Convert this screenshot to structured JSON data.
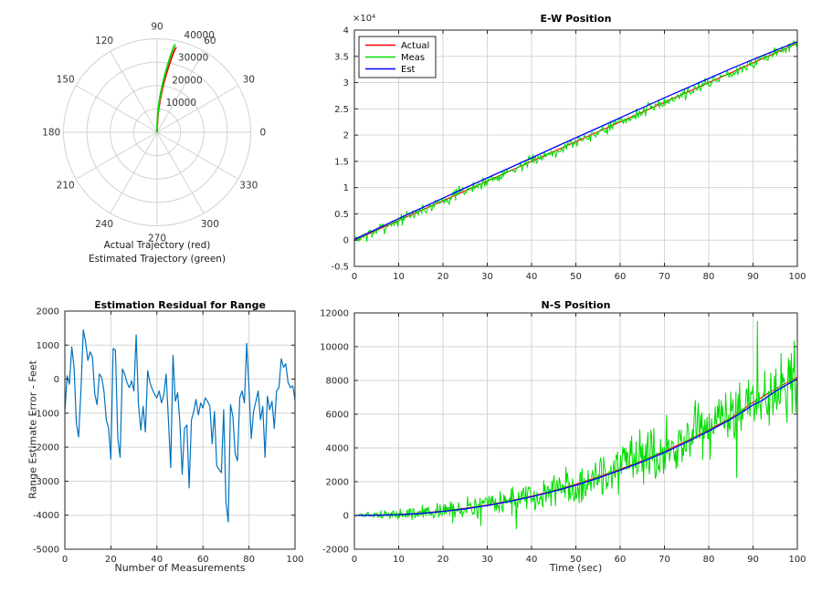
{
  "style": {
    "background": "#ffffff",
    "axis_color": "#262626",
    "grid_color": "#d6d6d6",
    "polar_grid_color": "#d2d2d2",
    "actual_red": "#ff0000",
    "meas_green": "#00dd00",
    "est_blue": "#0000ff",
    "residual_blue": "#0072bd"
  },
  "chart_data": [
    {
      "id": "trajectory-polar",
      "type": "line-polar",
      "captions": [
        "Actual Trajectory (red)",
        "Estimated Trajectory (green)"
      ],
      "rmax": 40000,
      "radius_ticks": [
        10000,
        20000,
        30000,
        40000
      ],
      "radius_tick_labels": [
        "10000",
        "20000",
        "30000",
        "40000"
      ],
      "radius_label_angle_deg": 75,
      "angle_step_deg": 30,
      "angle_labels": [
        "0",
        "30",
        "60",
        "90",
        "120",
        "150",
        "180",
        "210",
        "240",
        "270",
        "300",
        "330"
      ],
      "grid": true,
      "series": [
        {
          "name": "Actual Trajectory",
          "color": "#ff0000",
          "width": 1.8,
          "polar_anchors": [
            [
              90,
              0
            ],
            [
              89.3,
              1300
            ],
            [
              88.4,
              3600
            ],
            [
              87.3,
              6600
            ],
            [
              86.2,
              9600
            ],
            [
              85.1,
              12600
            ],
            [
              84.1,
              15600
            ],
            [
              83.1,
              18600
            ],
            [
              82.1,
              21600
            ],
            [
              81.2,
              24600
            ],
            [
              80.3,
              27600
            ],
            [
              79.5,
              30600
            ],
            [
              78.7,
              33600
            ],
            [
              78.0,
              36000
            ],
            [
              77.4,
              37300
            ]
          ]
        },
        {
          "name": "Estimated Trajectory",
          "color": "#00dd00",
          "width": 1.8,
          "polar_anchors": [
            [
              90,
              0
            ],
            [
              90.3,
              1300
            ],
            [
              89.4,
              3700
            ],
            [
              88.3,
              6800
            ],
            [
              87.2,
              9900
            ],
            [
              86.1,
              13000
            ],
            [
              85.1,
              16100
            ],
            [
              84.1,
              19200
            ],
            [
              83.1,
              22200
            ],
            [
              82.2,
              25300
            ],
            [
              81.3,
              28400
            ],
            [
              80.5,
              31500
            ],
            [
              79.7,
              34600
            ],
            [
              79.0,
              37100
            ],
            [
              78.4,
              38400
            ]
          ]
        }
      ]
    },
    {
      "id": "ew-position",
      "type": "line",
      "title": "E-W Position",
      "xlabel": "",
      "ylabel": "",
      "y_multiplier_label": "×10⁴",
      "xlim": [
        0,
        100
      ],
      "ylim": [
        -5000,
        40000
      ],
      "xticks": [
        0,
        10,
        20,
        30,
        40,
        50,
        60,
        70,
        80,
        90,
        100
      ],
      "xtick_labels": [
        "0",
        "10",
        "20",
        "30",
        "40",
        "50",
        "60",
        "70",
        "80",
        "90",
        "100"
      ],
      "yticks": [
        -5000,
        0,
        5000,
        10000,
        15000,
        20000,
        25000,
        30000,
        35000,
        40000
      ],
      "ytick_labels": [
        "-0.5",
        "0",
        "0.5",
        "1",
        "1.5",
        "2",
        "2.5",
        "3",
        "3.5",
        "4"
      ],
      "grid": true,
      "legend": {
        "position": "northwest",
        "entries": [
          "Actual",
          "Meas",
          "Est"
        ]
      },
      "series": [
        {
          "name": "Actual",
          "color": "#ff0000",
          "width": 1.1,
          "anchors": [
            [
              0,
              0
            ],
            [
              100,
              37500
            ]
          ]
        },
        {
          "name": "Meas",
          "color": "#00dd00",
          "width": 1.0,
          "base": "Actual",
          "noise": {
            "n": 500,
            "seed": 7,
            "sigma0": 520,
            "sigma_slope": 0,
            "spikes": []
          }
        },
        {
          "name": "Est",
          "color": "#0000ff",
          "width": 1.3,
          "anchors": [
            [
              0,
              150
            ],
            [
              5,
              2100
            ],
            [
              10,
              4100
            ],
            [
              15,
              6050
            ],
            [
              20,
              8000
            ],
            [
              25,
              9950
            ],
            [
              30,
              11850
            ],
            [
              35,
              13750
            ],
            [
              40,
              15650
            ],
            [
              45,
              17600
            ],
            [
              50,
              19500
            ],
            [
              55,
              21400
            ],
            [
              60,
              23300
            ],
            [
              65,
              25200
            ],
            [
              70,
              27100
            ],
            [
              75,
              28950
            ],
            [
              80,
              30800
            ],
            [
              85,
              32650
            ],
            [
              90,
              34400
            ],
            [
              95,
              36100
            ],
            [
              100,
              37800
            ]
          ]
        }
      ]
    },
    {
      "id": "range-residual",
      "type": "line",
      "title": "Estimation Residual for Range",
      "xlabel": "Number of Measurements",
      "ylabel": "Range Estimate Error - Feet",
      "xlim": [
        0,
        100
      ],
      "ylim": [
        -5000,
        2000
      ],
      "xticks": [
        0,
        20,
        40,
        60,
        80,
        100
      ],
      "xtick_labels": [
        "0",
        "20",
        "40",
        "60",
        "80",
        "100"
      ],
      "yticks": [
        -5000,
        -4000,
        -3000,
        -2000,
        -1000,
        0,
        1000,
        2000
      ],
      "ytick_labels": [
        "-5000",
        "-4000",
        "-3000",
        "-2000",
        "-1000",
        "0",
        "1000",
        "2000"
      ],
      "grid": true,
      "series": [
        {
          "name": "Range residual",
          "color": "#0072bd",
          "width": 1.2,
          "x_start": 0,
          "x_step": 1,
          "values": [
            -950,
            100,
            -150,
            950,
            350,
            -1300,
            -1700,
            -350,
            1450,
            1100,
            550,
            800,
            650,
            -450,
            -750,
            150,
            50,
            -350,
            -1200,
            -1450,
            -2350,
            900,
            850,
            -1750,
            -2300,
            300,
            150,
            -100,
            -250,
            -50,
            -350,
            1300,
            -750,
            -1500,
            -800,
            -1550,
            250,
            -100,
            -300,
            -450,
            -550,
            -350,
            -700,
            -450,
            150,
            -1200,
            -2600,
            700,
            -650,
            -400,
            -1300,
            -2800,
            -1450,
            -1350,
            -3200,
            -1200,
            -950,
            -600,
            -1050,
            -700,
            -850,
            -550,
            -650,
            -800,
            -1900,
            -950,
            -2550,
            -2650,
            -2750,
            -900,
            -3600,
            -4200,
            -750,
            -1100,
            -2200,
            -2400,
            -550,
            -350,
            -700,
            1050,
            -250,
            -1750,
            -950,
            -650,
            -350,
            -1200,
            -800,
            -2300,
            -500,
            -900,
            -650,
            -1450,
            -350,
            -250,
            600,
            350,
            450,
            -100,
            -250,
            -200,
            -600
          ]
        }
      ]
    },
    {
      "id": "ns-position",
      "type": "line",
      "title": "N-S Position",
      "xlabel": "Time (sec)",
      "ylabel": "",
      "xlim": [
        0,
        100
      ],
      "ylim": [
        -2000,
        12000
      ],
      "xticks": [
        0,
        10,
        20,
        30,
        40,
        50,
        60,
        70,
        80,
        90,
        100
      ],
      "xtick_labels": [
        "0",
        "10",
        "20",
        "30",
        "40",
        "50",
        "60",
        "70",
        "80",
        "90",
        "100"
      ],
      "yticks": [
        -2000,
        0,
        2000,
        4000,
        6000,
        8000,
        10000,
        12000
      ],
      "ytick_labels": [
        "-2000",
        "0",
        "2000",
        "4000",
        "6000",
        "8000",
        "10000",
        "12000"
      ],
      "grid": true,
      "series": [
        {
          "name": "Actual",
          "color": "#ff0000",
          "width": 1.1,
          "anchors": [
            [
              0,
              0
            ],
            [
              5,
              15
            ],
            [
              10,
              60
            ],
            [
              15,
              140
            ],
            [
              20,
              260
            ],
            [
              25,
              420
            ],
            [
              30,
              620
            ],
            [
              35,
              860
            ],
            [
              40,
              1140
            ],
            [
              45,
              1470
            ],
            [
              50,
              1850
            ],
            [
              55,
              2280
            ],
            [
              60,
              2740
            ],
            [
              65,
              3250
            ],
            [
              70,
              3810
            ],
            [
              75,
              4420
            ],
            [
              80,
              5080
            ],
            [
              85,
              5780
            ],
            [
              90,
              6700
            ],
            [
              92,
              7000
            ],
            [
              95,
              7500
            ],
            [
              100,
              8200
            ]
          ]
        },
        {
          "name": "Meas",
          "color": "#00dd00",
          "width": 1.0,
          "base": "Actual",
          "noise": {
            "n": 600,
            "seed": 13,
            "sigma0": 40,
            "sigma_slope": 10.5,
            "spikes": [
              [
                28.5,
                -600
              ],
              [
                36.5,
                -800
              ],
              [
                91,
                11500
              ]
            ]
          }
        },
        {
          "name": "Est",
          "color": "#0000ff",
          "width": 1.3,
          "anchors": [
            [
              0,
              0
            ],
            [
              5,
              10
            ],
            [
              10,
              50
            ],
            [
              15,
              120
            ],
            [
              20,
              240
            ],
            [
              25,
              390
            ],
            [
              30,
              590
            ],
            [
              35,
              830
            ],
            [
              40,
              1110
            ],
            [
              45,
              1430
            ],
            [
              50,
              1790
            ],
            [
              55,
              2210
            ],
            [
              60,
              2680
            ],
            [
              65,
              3180
            ],
            [
              70,
              3730
            ],
            [
              75,
              4340
            ],
            [
              80,
              5000
            ],
            [
              85,
              5700
            ],
            [
              88,
              6200
            ],
            [
              90,
              6550
            ],
            [
              92,
              6800
            ],
            [
              95,
              7350
            ],
            [
              100,
              8100
            ]
          ]
        }
      ]
    }
  ]
}
